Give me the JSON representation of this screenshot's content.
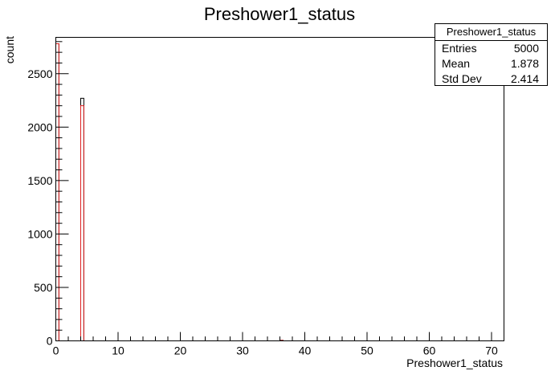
{
  "chart_data": {
    "type": "bar",
    "title": "Preshower1_status",
    "xlabel": "Preshower1_status",
    "ylabel": "count",
    "xlim": [
      0,
      72
    ],
    "ylim": [
      0,
      2840
    ],
    "x_ticks": [
      0,
      10,
      20,
      30,
      40,
      50,
      60,
      70
    ],
    "y_ticks": [
      0,
      500,
      1000,
      1500,
      2000,
      2500
    ],
    "bin_width": 0.5,
    "series": [
      {
        "bins": [
          {
            "x": 0.0,
            "value": 2780
          },
          {
            "x": 4.0,
            "value": 2270
          },
          {
            "x": 36.0,
            "value": 6
          }
        ],
        "color": "#000000"
      },
      {
        "bins": [
          {
            "x": 0.0,
            "value": 2780
          },
          {
            "x": 4.0,
            "value": 2200
          },
          {
            "x": 36.0,
            "value": 4
          }
        ],
        "color": "#e02020"
      }
    ],
    "grid": false
  },
  "stats": {
    "title": "Preshower1_status",
    "rows": [
      {
        "label": "Entries",
        "value": "5000"
      },
      {
        "label": "Mean",
        "value": "1.878"
      },
      {
        "label": "Std Dev",
        "value": "2.414"
      }
    ]
  }
}
